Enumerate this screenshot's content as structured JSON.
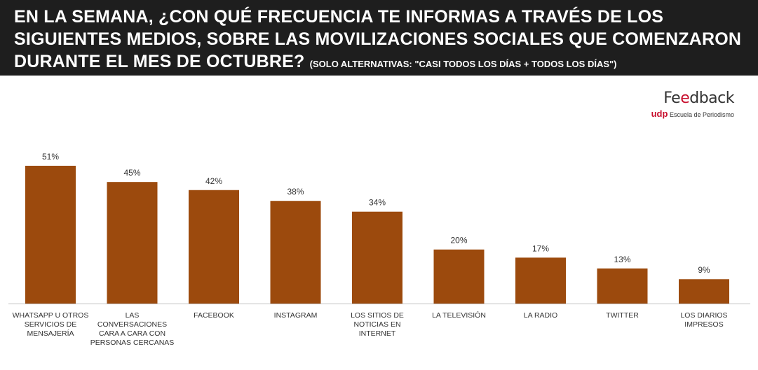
{
  "header": {
    "title": "EN LA SEMANA, ¿CON QUÉ FRECUENCIA TE INFORMAS A TRAVÉS DE LOS SIGUIENTES MEDIOS, SOBRE LAS MOVILIZACIONES SOCIALES QUE COMENZARON DURANTE EL MES DE OCTUBRE?",
    "subtitle": "(SOLO ALTERNATIVAS: \"CASI TODOS LOS DÍAS + TODOS LOS DÍAS\")"
  },
  "logo": {
    "word_start": "Fe",
    "word_accent": "e",
    "word_end": "dback",
    "udp": "udp",
    "school": "Escuela de Periodismo"
  },
  "colors": {
    "bar": "#9c4a0d",
    "header_bg": "#1e1e1e",
    "accent": "#c8102e"
  },
  "chart_data": {
    "type": "bar",
    "categories": [
      [
        "WHATSAPP U OTROS",
        "SERVICIOS DE",
        "MENSAJERÍA"
      ],
      [
        "LAS",
        "CONVERSACIONES",
        "CARA A CARA CON",
        "PERSONAS CERCANAS"
      ],
      [
        "FACEBOOK"
      ],
      [
        "INSTAGRAM"
      ],
      [
        "LOS SITIOS DE",
        "NOTICIAS EN",
        "INTERNET"
      ],
      [
        "LA TELEVISIÓN"
      ],
      [
        "LA RADIO"
      ],
      [
        "TWITTER"
      ],
      [
        "LOS DIARIOS",
        "IMPRESOS"
      ]
    ],
    "values": [
      51,
      45,
      42,
      38,
      34,
      20,
      17,
      13,
      9
    ],
    "value_labels": [
      "51%",
      "45%",
      "42%",
      "38%",
      "34%",
      "20%",
      "17%",
      "13%",
      "9%"
    ],
    "ylim": [
      0,
      51
    ],
    "grid": false,
    "legend": "none"
  }
}
